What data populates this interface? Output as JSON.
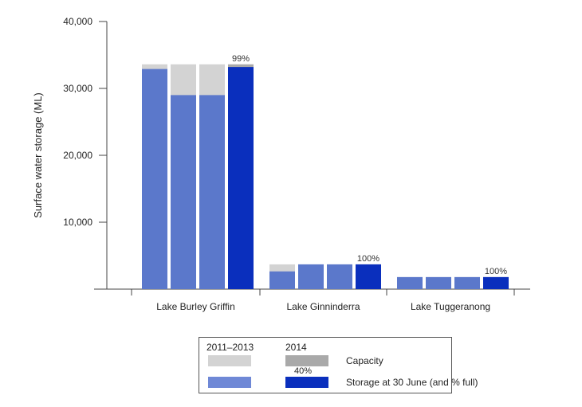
{
  "chart_data": {
    "type": "bar",
    "ylabel": "Surface water storage (ML)",
    "xlabel": "",
    "ylim": [
      0,
      40000
    ],
    "yticks": [
      10000,
      20000,
      30000,
      40000
    ],
    "ytick_labels": [
      "10,000",
      "20,000",
      "30,000",
      "40,000"
    ],
    "categories": [
      "Lake Burley Griffin",
      "Lake Ginninderra",
      "Lake Tuggeranong"
    ],
    "years": [
      "2011",
      "2012",
      "2013",
      "2014"
    ],
    "series": [
      {
        "name": "Capacity",
        "values": [
          [
            33600,
            33600,
            33600,
            33600
          ],
          [
            3700,
            3700,
            3700,
            3700
          ],
          [
            1800,
            1800,
            1800,
            1800
          ]
        ]
      },
      {
        "name": "Storage at 30 June (and % full)",
        "values": [
          [
            32900,
            29000,
            29000,
            33200
          ],
          [
            2650,
            3700,
            3700,
            3700
          ],
          [
            1800,
            1800,
            1800,
            1800
          ]
        ]
      }
    ],
    "pct_labels": [
      "99%",
      "100%",
      "100%"
    ],
    "colors": {
      "capacity_past": "#d3d3d3",
      "capacity_2014": "#a9a9a9",
      "storage_past": "#5b78cb",
      "storage_2014": "#0a2fbd",
      "axis": "#444444"
    },
    "legend": {
      "period_past": "2011–2013",
      "period_latest": "2014",
      "capacity_label": "Capacity",
      "storage_label": "Storage at 30 June (and % full)",
      "sample_pct": "40%",
      "placement": "bottom-center"
    }
  }
}
